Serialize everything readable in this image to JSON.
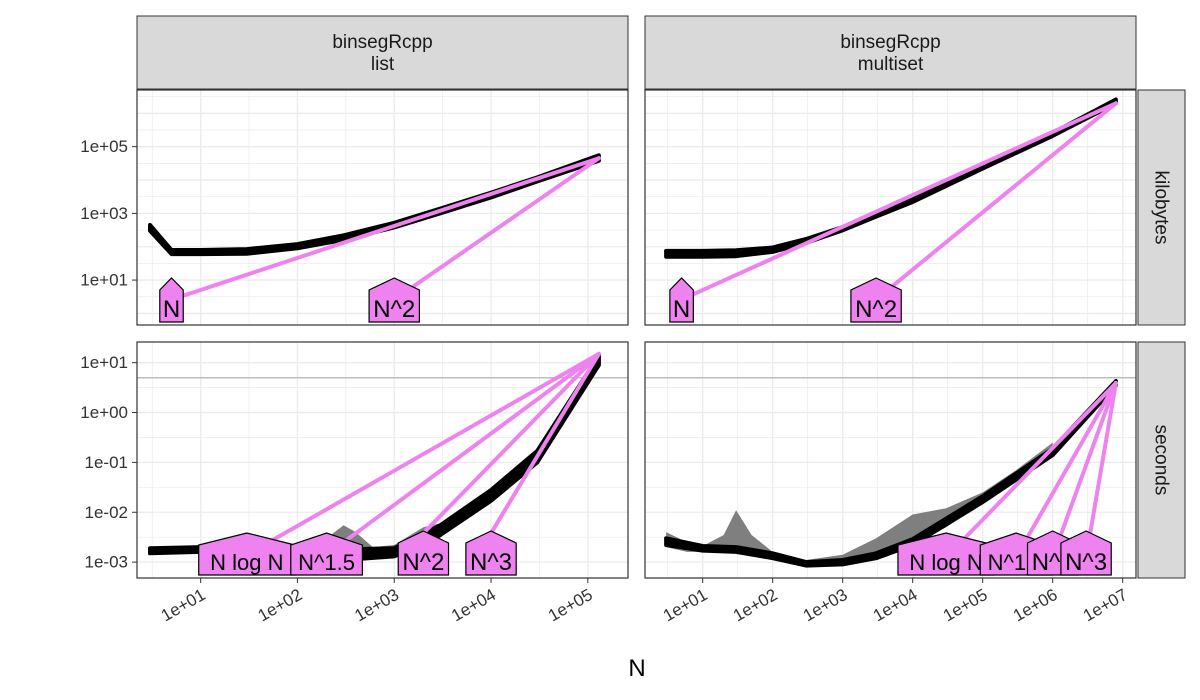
{
  "chart_data": {
    "type": "line",
    "xlabel": "N",
    "ylabel": "",
    "x_scale": "log10",
    "y_scale": "log10",
    "grid": true,
    "colors": {
      "empirical": "#000000",
      "reference": "#ee82ee",
      "label_fill": "#ee82ee",
      "band": "#7f7f7f",
      "strip_bg": "#d9d9d9",
      "hline": "#bdbdbd",
      "grid": "#ebebeb"
    },
    "column_strips": [
      "binsegRcpp\nlist",
      "binsegRcpp\nmultiset"
    ],
    "row_strips": [
      "kilobytes",
      "seconds"
    ],
    "x_ticks": {
      "list": [
        "1e+01",
        "1e+02",
        "1e+03",
        "1e+04",
        "1e+05"
      ],
      "multiset": [
        "1e+01",
        "1e+02",
        "1e+03",
        "1e+04",
        "1e+05",
        "1e+06",
        "1e+07"
      ]
    },
    "y_ticks": {
      "kilobytes": [
        "1e+01",
        "1e+03",
        "1e+05"
      ],
      "seconds": [
        "1e-03",
        "1e-02",
        "1e-01",
        "1e+00",
        "1e+01"
      ]
    },
    "time_limit_seconds": 5,
    "panels": [
      {
        "row": "kilobytes",
        "col": "list",
        "empirical": {
          "x": [
            3,
            5,
            10,
            30,
            100,
            300,
            1000,
            3000,
            10000,
            30000,
            130000
          ],
          "lower": [
            300,
            60,
            60,
            62,
            90,
            160,
            380,
            1000,
            3000,
            9000,
            38000
          ],
          "upper": [
            450,
            80,
            80,
            85,
            120,
            220,
            520,
            1400,
            4200,
            12000,
            55000
          ]
        },
        "references": [
          {
            "label": "N",
            "x": [
              5,
              130000
            ],
            "y": [
              2.6,
              45000
            ]
          },
          {
            "label": "N^2",
            "x": [
              1000,
              130000
            ],
            "y": [
              2.6,
              45000
            ]
          }
        ]
      },
      {
        "row": "kilobytes",
        "col": "multiset",
        "empirical": {
          "x": [
            3,
            10,
            30,
            100,
            300,
            1000,
            3000,
            10000,
            100000,
            1000000,
            8000000
          ],
          "lower": [
            50,
            50,
            52,
            70,
            130,
            310,
            800,
            2200,
            22000,
            210000,
            2000000
          ],
          "upper": [
            75,
            75,
            78,
            95,
            170,
            390,
            1000,
            2800,
            28000,
            260000,
            2600000
          ]
        },
        "references": [
          {
            "label": "N",
            "x": [
              5,
              8000000
            ],
            "y": [
              2.6,
              2000000
            ]
          },
          {
            "label": "N^2",
            "x": [
              3000,
              8000000
            ],
            "y": [
              2.6,
              2000000
            ]
          }
        ]
      },
      {
        "row": "seconds",
        "col": "list",
        "empirical": {
          "x": [
            3,
            10,
            30,
            100,
            300,
            1000,
            3000,
            10000,
            30000,
            130000
          ],
          "lower": [
            0.0015,
            0.0016,
            0.0015,
            0.00115,
            0.0011,
            0.0013,
            0.0035,
            0.017,
            0.1,
            9
          ],
          "upper": [
            0.0019,
            0.002,
            0.0019,
            0.0015,
            0.0018,
            0.0019,
            0.0055,
            0.028,
            0.17,
            14
          ]
        },
        "band": {
          "x": [
            30,
            100,
            150,
            200,
            300,
            400,
            600,
            1000,
            2000,
            3000
          ],
          "lower": [
            0.0015,
            0.0011,
            0.0011,
            0.0012,
            0.0013,
            0.0013,
            0.0013,
            0.0014,
            0.0028,
            0.003
          ],
          "upper": [
            0.0019,
            0.0015,
            0.0016,
            0.003,
            0.0055,
            0.004,
            0.002,
            0.0022,
            0.005,
            0.006
          ]
        },
        "references": [
          {
            "label": "N log N",
            "x": [
              30,
              130000
            ],
            "y": [
              0.0014,
              15
            ]
          },
          {
            "label": "N^1.5",
            "x": [
              200,
              130000
            ],
            "y": [
              0.0014,
              15
            ]
          },
          {
            "label": "N^2",
            "x": [
              2000,
              130000
            ],
            "y": [
              0.0038,
              15
            ]
          },
          {
            "label": "N^3",
            "x": [
              10000,
              130000
            ],
            "y": [
              0.0038,
              15
            ]
          }
        ]
      },
      {
        "row": "seconds",
        "col": "multiset",
        "empirical": {
          "x": [
            3,
            10,
            30,
            100,
            300,
            1000,
            3000,
            10000,
            100000,
            1000000,
            8000000
          ],
          "lower": [
            0.0022,
            0.0017,
            0.0016,
            0.0012,
            0.00085,
            0.0009,
            0.0012,
            0.0022,
            0.016,
            0.14,
            3.5
          ],
          "upper": [
            0.003,
            0.0021,
            0.002,
            0.0015,
            0.001,
            0.0011,
            0.0015,
            0.0029,
            0.021,
            0.19,
            4.3
          ]
        },
        "band": {
          "x": [
            3,
            6,
            10,
            20,
            30,
            50,
            100,
            300,
            1000,
            3000,
            10000,
            30000,
            100000,
            300000,
            1000000
          ],
          "lower": [
            0.002,
            0.0016,
            0.0016,
            0.0016,
            0.0017,
            0.0016,
            0.0013,
            0.0009,
            0.0009,
            0.0012,
            0.0022,
            0.005,
            0.016,
            0.05,
            0.14
          ],
          "upper": [
            0.004,
            0.0025,
            0.0021,
            0.0035,
            0.011,
            0.0035,
            0.0016,
            0.0011,
            0.0014,
            0.003,
            0.009,
            0.012,
            0.025,
            0.07,
            0.25
          ]
        },
        "references": [
          {
            "label": "N log N",
            "x": [
              30000,
              8000000
            ],
            "y": [
              0.00125,
              3.9
            ]
          },
          {
            "label": "N^1.5",
            "x": [
              300000,
              8000000
            ],
            "y": [
              0.00125,
              3.9
            ]
          },
          {
            "label": "N^2",
            "x": [
              1000000,
              8000000
            ],
            "y": [
              0.00125,
              3.9
            ]
          },
          {
            "label": "N^3",
            "x": [
              3000000,
              8000000
            ],
            "y": [
              0.00125,
              3.9
            ]
          }
        ]
      }
    ]
  }
}
